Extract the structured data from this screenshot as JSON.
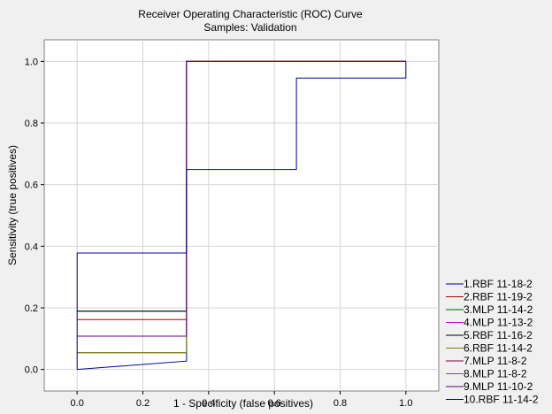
{
  "chart_data": {
    "type": "line",
    "title": "Receiver Operating Characteristic (ROC) Curve",
    "subtitle": "Samples: Validation",
    "xlabel": "1 - Specificity (false positives)",
    "ylabel": "Sensitivity (true positives)",
    "xlim": [
      -0.1,
      1.1
    ],
    "ylim": [
      -0.07,
      1.07
    ],
    "xticks": [
      0.0,
      0.2,
      0.4,
      0.6,
      0.8,
      1.0
    ],
    "yticks": [
      0.0,
      0.2,
      0.4,
      0.6,
      0.8,
      1.0
    ],
    "xtick_labels": [
      "0.0",
      "0.2",
      "0.4",
      "0.6",
      "0.8",
      "1.0"
    ],
    "ytick_labels": [
      "0.0",
      "0.2",
      "0.4",
      "0.6",
      "0.8",
      "1.0"
    ],
    "grid": true,
    "legend_position": "bottom-right outside",
    "series": [
      {
        "name": "1.RBF 11-18-2",
        "color": "#0000a0",
        "x": [
          0.0,
          0.333,
          0.333,
          0.667,
          0.667,
          1.0,
          1.0
        ],
        "y": [
          0.0,
          0.027,
          1.0,
          1.0,
          1.0,
          1.0,
          1.0
        ]
      },
      {
        "name": "2.RBF 11-19-2",
        "color": "#a00000",
        "x": [
          0.0,
          0.333,
          0.333,
          0.667,
          0.667,
          1.0,
          1.0
        ],
        "y": [
          0.162,
          0.162,
          1.0,
          1.0,
          1.0,
          1.0,
          1.0
        ]
      },
      {
        "name": "3.MLP 11-14-2",
        "color": "#006000",
        "x": [
          0.0,
          0.333,
          0.333,
          0.667,
          0.667,
          1.0,
          1.0
        ],
        "y": [
          0.189,
          0.189,
          1.0,
          1.0,
          1.0,
          1.0,
          1.0
        ]
      },
      {
        "name": "4.MLP 11-13-2",
        "color": "#c000c0",
        "x": [
          0.0,
          0.333,
          0.333,
          0.667,
          0.667,
          1.0,
          1.0
        ],
        "y": [
          0.108,
          0.108,
          1.0,
          1.0,
          1.0,
          1.0,
          1.0
        ]
      },
      {
        "name": "5.RBF 11-16-2",
        "color": "#000000",
        "x": [
          0.0,
          0.333,
          0.333,
          0.667,
          0.667,
          1.0,
          1.0
        ],
        "y": [
          0.189,
          0.189,
          1.0,
          1.0,
          1.0,
          1.0,
          1.0
        ]
      },
      {
        "name": "6.RBF 11-14-2",
        "color": "#808000",
        "x": [
          0.0,
          0.333,
          0.333,
          0.667,
          0.667,
          1.0,
          1.0
        ],
        "y": [
          0.054,
          0.054,
          1.0,
          1.0,
          1.0,
          1.0,
          1.0
        ]
      },
      {
        "name": "7.MLP 11-8-2",
        "color": "#800040",
        "x": [
          0.0,
          0.333,
          0.333,
          0.667,
          0.667,
          1.0,
          1.0
        ],
        "y": [
          0.108,
          0.108,
          1.0,
          1.0,
          1.0,
          1.0,
          1.0
        ]
      },
      {
        "name": "8.MLP 11-8-2",
        "color": "#707000",
        "x": [
          0.0,
          0.333,
          0.333,
          0.667,
          0.667,
          1.0,
          1.0
        ],
        "y": [
          0.054,
          0.054,
          1.0,
          1.0,
          1.0,
          1.0,
          1.0
        ]
      },
      {
        "name": "9.MLP 11-10-2",
        "color": "#600080",
        "x": [
          0.0,
          0.333,
          0.333,
          0.667,
          0.667,
          1.0,
          1.0
        ],
        "y": [
          0.108,
          0.108,
          1.0,
          1.0,
          1.0,
          1.0,
          1.0
        ]
      },
      {
        "name": "10.RBF 11-14-2",
        "color": "#0000a0",
        "x": [
          0.0,
          0.0,
          0.333,
          0.333,
          0.667,
          0.667,
          1.0,
          1.0
        ],
        "y": [
          0.0,
          0.378,
          0.378,
          0.649,
          0.649,
          0.946,
          0.946,
          1.0
        ]
      }
    ]
  }
}
